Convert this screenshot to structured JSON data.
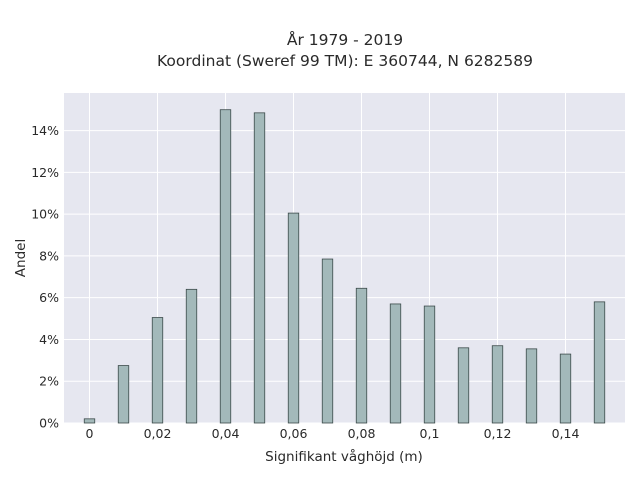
{
  "chart_data": {
    "type": "bar",
    "title_lines": [
      "År 1979 - 2019",
      "Koordinat (Sweref 99 TM): E 360744, N 6282589"
    ],
    "xlabel": "Signifikant våghöjd (m)",
    "ylabel": "Andel",
    "x": [
      0,
      0.01,
      0.02,
      0.03,
      0.04,
      0.05,
      0.06,
      0.07,
      0.08,
      0.09,
      0.1,
      0.11,
      0.12,
      0.13,
      0.14,
      0.15
    ],
    "values": [
      0.2,
      2.75,
      5.05,
      6.4,
      15.0,
      14.85,
      10.05,
      7.85,
      6.45,
      5.7,
      5.6,
      3.6,
      3.7,
      3.55,
      3.3,
      5.8
    ],
    "xlim": [
      -0.0075,
      0.1575
    ],
    "ylim": [
      0,
      15.8
    ],
    "x_ticks": [
      0,
      0.02,
      0.04,
      0.06,
      0.08,
      0.1,
      0.12,
      0.14
    ],
    "x_tick_labels": [
      "0",
      "0,02",
      "0,04",
      "0,06",
      "0,08",
      "0,1",
      "0,12",
      "0,14"
    ],
    "y_ticks": [
      0,
      2,
      4,
      6,
      8,
      10,
      12,
      14
    ],
    "y_tick_labels": [
      "0%",
      "2%",
      "4%",
      "6%",
      "8%",
      "10%",
      "12%",
      "14%"
    ],
    "grid": true,
    "colors": {
      "bar_fill": "#a3b9ba",
      "bar_stroke": "#3b4a4a",
      "plot_background": "#e6e7f0",
      "grid": "#ffffff"
    }
  }
}
